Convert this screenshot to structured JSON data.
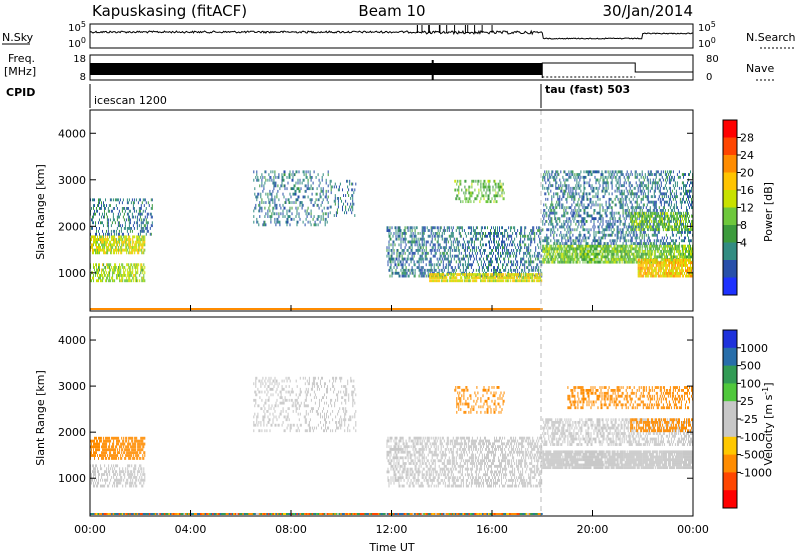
{
  "header": {
    "station": "Kapuskasing (fitACF)",
    "beam": "Beam 10",
    "date": "30/Jan/2014"
  },
  "strip_labels": {
    "nsky": "N.Sky",
    "nsearch": "N.Search",
    "freq_line1": "Freq.",
    "freq_line2": "[MHz]",
    "nave": "Nave",
    "cpid": "CPID"
  },
  "strip_ticks": {
    "noise_left": [
      "10^5",
      "10^0"
    ],
    "noise_right": [
      "10^5",
      "10^0"
    ],
    "freq_left": [
      "18",
      "8"
    ],
    "nave_right": [
      "80",
      "0"
    ]
  },
  "cpid_segments": [
    {
      "label": "icescan 1200",
      "start_hour": 0
    },
    {
      "label": "tau (fast) 503",
      "start_hour": 18
    }
  ],
  "chart_data": [
    {
      "type": "heatmap",
      "name": "power",
      "ylabel": "Slant Range [km]",
      "xlabel": "",
      "ylim": [
        180,
        4500
      ],
      "yticks": [
        1000,
        2000,
        3000,
        4000
      ],
      "xlim": [
        0,
        24
      ],
      "colorbar": {
        "label": "Power [dB]",
        "ticks": [
          "28",
          "24",
          "20",
          "16",
          "12",
          "8",
          "4"
        ],
        "colors": [
          "#ff0000",
          "#ff4500",
          "#ff8c00",
          "#ffc400",
          "#c8e100",
          "#6ec83c",
          "#3c9b3c",
          "#328c82",
          "#2850aa",
          "#1e32ff"
        ]
      },
      "regions": [
        {
          "t0": 0.0,
          "t1": 2.2,
          "r0": 1400,
          "r1": 1800,
          "value": 18,
          "density": 0.75
        },
        {
          "t0": 0.0,
          "t1": 2.2,
          "r0": 800,
          "r1": 1200,
          "value": 16,
          "density": 0.6
        },
        {
          "t0": 0.0,
          "t1": 2.5,
          "r0": 1800,
          "r1": 2600,
          "value": 6,
          "density": 0.35
        },
        {
          "t0": 6.5,
          "t1": 9.5,
          "r0": 2000,
          "r1": 3200,
          "value": 6,
          "density": 0.25
        },
        {
          "t0": 9.5,
          "t1": 10.6,
          "r0": 2200,
          "r1": 3000,
          "value": 6,
          "density": 0.2
        },
        {
          "t0": 11.8,
          "t1": 18.0,
          "r0": 900,
          "r1": 2000,
          "value": 6,
          "density": 0.45
        },
        {
          "t0": 13.5,
          "t1": 18.0,
          "r0": 800,
          "r1": 1000,
          "value": 19,
          "density": 0.85
        },
        {
          "t0": 14.5,
          "t1": 16.5,
          "r0": 2500,
          "r1": 3000,
          "value": 13,
          "density": 0.35
        },
        {
          "t0": 18.0,
          "t1": 24.0,
          "r0": 1200,
          "r1": 1600,
          "value": 14,
          "density": 0.8
        },
        {
          "t0": 18.0,
          "t1": 24.0,
          "r0": 1600,
          "r1": 3200,
          "value": 6,
          "density": 0.4
        },
        {
          "t0": 21.8,
          "t1": 24.0,
          "r0": 900,
          "r1": 1300,
          "value": 21,
          "density": 0.85
        },
        {
          "t0": 21.5,
          "t1": 24.0,
          "r0": 1900,
          "r1": 2300,
          "value": 14,
          "density": 0.6
        }
      ]
    },
    {
      "type": "heatmap",
      "name": "velocity",
      "ylabel": "Slant Range [km]",
      "xlabel": "Time UT",
      "ylim": [
        180,
        4500
      ],
      "yticks": [
        1000,
        2000,
        3000,
        4000
      ],
      "xlim": [
        0,
        24
      ],
      "xticks": [
        "00:00",
        "04:00",
        "08:00",
        "12:00",
        "16:00",
        "20:00",
        "00:00"
      ],
      "colorbar": {
        "label": "Velocity [m s^-1]",
        "ticks": [
          "1000",
          "500",
          "100",
          "25",
          "-25",
          "-100",
          "-500",
          "-1000"
        ],
        "colors": [
          "#1e32dc",
          "#286eaa",
          "#329b55",
          "#50c83c",
          "#c8c8c8",
          "#c8c8c8",
          "#ffc800",
          "#ff8c00",
          "#ff4600",
          "#ff0000"
        ]
      },
      "regions": [
        {
          "t0": 0.0,
          "t1": 2.2,
          "r0": 1400,
          "r1": 1900,
          "value": -200,
          "density": 0.7
        },
        {
          "t0": 0.0,
          "t1": 2.2,
          "r0": 800,
          "r1": 1300,
          "value": 0,
          "density": 0.5
        },
        {
          "t0": 6.5,
          "t1": 10.6,
          "r0": 2000,
          "r1": 3200,
          "value": 0,
          "density": 0.25
        },
        {
          "t0": 11.8,
          "t1": 18.0,
          "r0": 800,
          "r1": 1900,
          "value": 0,
          "density": 0.5
        },
        {
          "t0": 14.5,
          "t1": 16.5,
          "r0": 2400,
          "r1": 3000,
          "value": -150,
          "density": 0.3
        },
        {
          "t0": 18.0,
          "t1": 24.0,
          "r0": 1200,
          "r1": 1600,
          "value": 0,
          "density": 0.9
        },
        {
          "t0": 18.0,
          "t1": 24.0,
          "r0": 1700,
          "r1": 2300,
          "value": 0,
          "density": 0.5
        },
        {
          "t0": 19.0,
          "t1": 24.0,
          "r0": 2500,
          "r1": 3000,
          "value": -150,
          "density": 0.45
        },
        {
          "t0": 21.5,
          "t1": 24.0,
          "r0": 2000,
          "r1": 2300,
          "value": -150,
          "density": 0.6
        }
      ]
    }
  ]
}
